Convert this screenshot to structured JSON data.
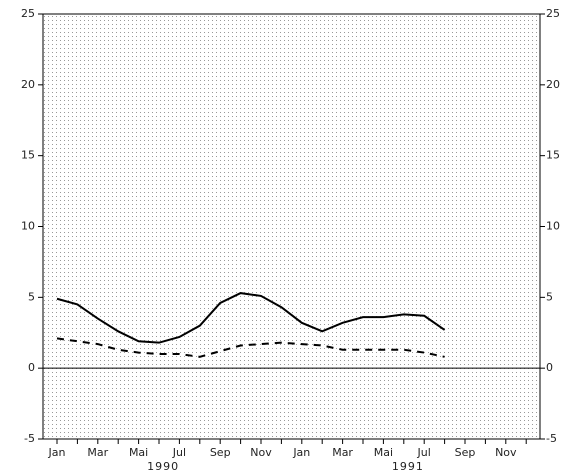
{
  "chart_data": {
    "type": "line",
    "categories": [
      "Jan",
      null,
      "Mar",
      null,
      "Mai",
      null,
      "Jul",
      null,
      "Sep",
      null,
      "Nov",
      null,
      "Jan",
      null,
      "Mar",
      null,
      "Mai",
      null,
      "Jul",
      null,
      "Sep",
      null,
      "Nov",
      null
    ],
    "year_labels": [
      "1990",
      "1991"
    ],
    "series": [
      {
        "color": "#000000",
        "dashed": false,
        "values": [
          4.9,
          4.5,
          3.5,
          2.6,
          1.9,
          1.8,
          2.2,
          3.0,
          4.6,
          5.3,
          5.1,
          4.3,
          3.2,
          2.6,
          3.2,
          3.6,
          3.6,
          3.8,
          3.7,
          2.7,
          null,
          null,
          null,
          null
        ]
      },
      {
        "color": "#000000",
        "dashed": true,
        "values": [
          2.1,
          1.9,
          1.7,
          1.3,
          1.1,
          1.0,
          1.0,
          0.8,
          1.2,
          1.6,
          1.7,
          1.8,
          1.7,
          1.6,
          1.3,
          1.3,
          1.3,
          1.3,
          1.1,
          0.8,
          null,
          null,
          null,
          null
        ]
      }
    ],
    "ylim": [
      -5,
      25
    ],
    "yticks": [
      -5,
      0,
      5,
      10,
      15,
      20,
      25
    ],
    "mirror_y_axis": true,
    "zero_line": true,
    "grid": "dotted"
  }
}
